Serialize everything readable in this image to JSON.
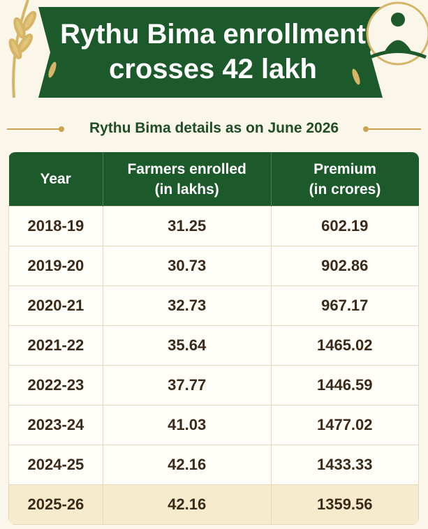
{
  "header": {
    "title_lines": [
      "Rythu Bima enrollment",
      "crosses 42 lakh"
    ],
    "subtitle": "Rythu Bima details as on June 2026"
  },
  "table": {
    "headers": [
      [
        "Year"
      ],
      [
        "Farmers enrolled",
        "(in lakhs)"
      ],
      [
        "Premium",
        "(in crores)"
      ]
    ],
    "rows": [
      [
        "2018-19",
        "31.25",
        "602.19"
      ],
      [
        "2019-20",
        "30.73",
        "902.86"
      ],
      [
        "2020-21",
        "32.73",
        "967.17"
      ],
      [
        "2021-22",
        "35.64",
        "1465.02"
      ],
      [
        "2022-23",
        "37.77",
        "1446.59"
      ],
      [
        "2023-24",
        "41.03",
        "1477.02"
      ],
      [
        "2024-25",
        "42.16",
        "1433.33"
      ],
      [
        "2025-26",
        "42.16",
        "1359.56"
      ]
    ]
  }
}
